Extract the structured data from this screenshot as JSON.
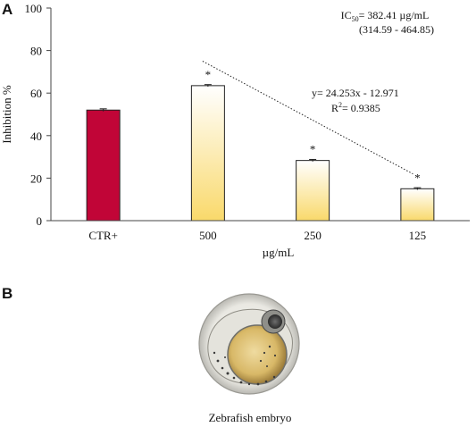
{
  "panels": {
    "a_label": "A",
    "b_label": "B"
  },
  "chart_data": {
    "type": "bar",
    "categories": [
      "CTR+",
      "500",
      "250",
      "125"
    ],
    "values": [
      52.0,
      63.5,
      28.3,
      15.0
    ],
    "errors": [
      0.6,
      0.5,
      0.5,
      0.5
    ],
    "significance": [
      "",
      "*",
      "*",
      "*"
    ],
    "xlabel": "µg/mL",
    "ylabel": "Inhibition %",
    "ylim": [
      0,
      100
    ],
    "yticks": [
      0,
      20,
      40,
      60,
      80,
      100
    ],
    "bar_colors": {
      "control": "#c10537",
      "treatment_top": "#ffffff",
      "treatment_bottom": "#f9d96b"
    },
    "ic50": {
      "line1_prefix": "IC",
      "line1_sub": "50",
      "line1_value": "= 382.41 µg/mL",
      "line2": "(314.59 - 464.85)"
    },
    "regression": {
      "equation": "y= 24.253x - 12.971",
      "r2_prefix": "R",
      "r2_sup": "2",
      "r2_value": "= 0.9385",
      "y_start": 75,
      "y_end": 22,
      "style": "dotted"
    },
    "grid": false
  },
  "panel_b": {
    "caption": "Zebrafish  embryo",
    "image": "zebrafish-embryo"
  }
}
